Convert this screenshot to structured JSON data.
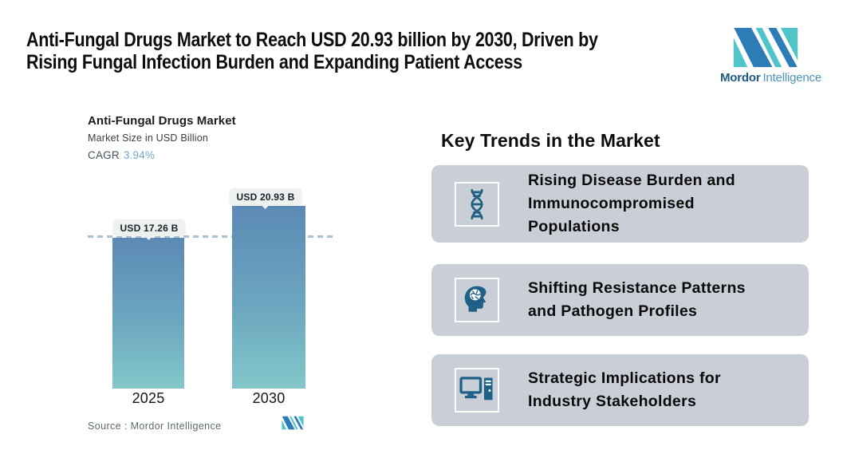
{
  "header": {
    "title": "Anti-Fungal Drugs Market to Reach USD 20.93 billion by 2030, Driven by\nRising Fungal Infection Burden and Expanding Patient Access"
  },
  "brand": {
    "name_bold": "Mordor",
    "name_light": "Intelligence"
  },
  "chart_data": {
    "type": "bar",
    "title": "Anti-Fungal Drugs Market",
    "subtitle": "Market Size in USD Billion",
    "cagr_label": "CAGR",
    "cagr_value": "3.94%",
    "categories": [
      "2025",
      "2030"
    ],
    "values": [
      17.26,
      20.93
    ],
    "unit": "USD Billion",
    "bar_labels": [
      "USD 17.26 B",
      "USD 20.93 B"
    ],
    "reference_line": {
      "value": 17.26,
      "style": "dashed"
    },
    "ylim": [
      0,
      21
    ],
    "legend": "none",
    "grid": "off",
    "source": "Source :  Mordor Intelligence"
  },
  "trends": {
    "heading": "Key Trends in the Market",
    "cards": [
      {
        "icon": "dna-icon",
        "title": "Rising Disease Burden and\nImmunocompromised\nPopulations"
      },
      {
        "icon": "head-brain-icon",
        "title": "Shifting Resistance Patterns\nand Pathogen Profiles"
      },
      {
        "icon": "computer-icon",
        "title": "Strategic Implications for\nIndustry Stakeholders"
      }
    ]
  },
  "colors": {
    "accent_teal": "#4fc4c9",
    "accent_blue": "#2d7cb5",
    "icon_blue": "#1e6086",
    "card_bg": "#c9ced7",
    "bar_gradient_top": "#5c8ab6",
    "bar_gradient_bottom": "#83c7ca",
    "dashed_line": "#a9c2d3",
    "cagr_value_color": "#74a7d0"
  }
}
